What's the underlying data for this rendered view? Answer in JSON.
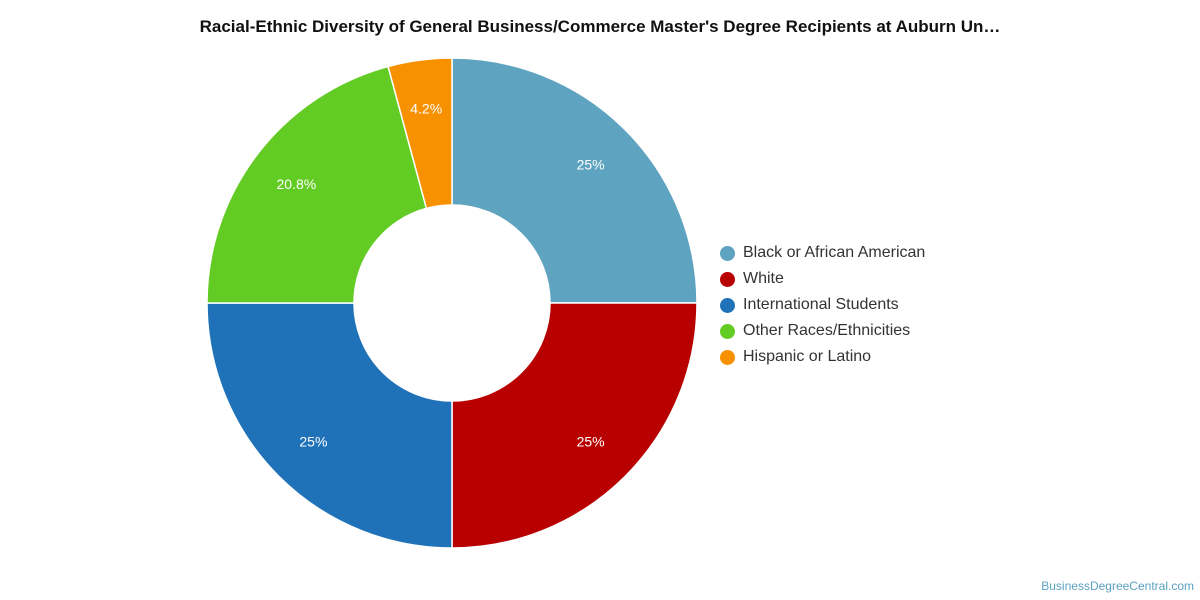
{
  "chart_data": {
    "type": "pie",
    "title": "Racial-Ethnic Diversity of General Business/Commerce Master's Degree Recipients at Auburn Un…",
    "donut": true,
    "legend_position": "right",
    "slices": [
      {
        "label": "Black or African American",
        "value": 25,
        "display": "25%",
        "color": "#5ea3c0"
      },
      {
        "label": "White",
        "value": 25,
        "display": "25%",
        "color": "#b80000"
      },
      {
        "label": "International Students",
        "value": 25,
        "display": "25%",
        "color": "#1f72b8"
      },
      {
        "label": "Other Races/Ethnicities",
        "value": 20.8,
        "display": "20.8%",
        "color": "#62cb24"
      },
      {
        "label": "Hispanic or Latino",
        "value": 4.2,
        "display": "4.2%",
        "color": "#f79100"
      }
    ]
  },
  "footer": {
    "credit": "BusinessDegreeCentral.com"
  }
}
